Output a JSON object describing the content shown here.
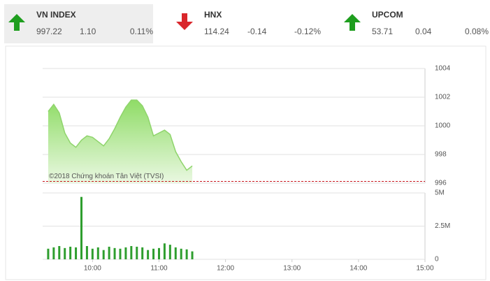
{
  "indices": [
    {
      "name": "VN INDEX",
      "value": "997.22",
      "change": "1.10",
      "percent": "0.11%",
      "direction": "up",
      "color": "#1e9e1e"
    },
    {
      "name": "HNX",
      "value": "114.24",
      "change": "-0.14",
      "percent": "-0.12%",
      "direction": "down",
      "color": "#d9262b"
    },
    {
      "name": "UPCOM",
      "value": "53.71",
      "change": "0.04",
      "percent": "0.08%",
      "direction": "up",
      "color": "#1e9e1e"
    }
  ],
  "chart_data": [
    {
      "type": "area",
      "annotation": "©2018 Chứng khoán Tân Việt (TVSI)",
      "x": [
        "09:20",
        "09:25",
        "09:30",
        "09:35",
        "09:40",
        "09:45",
        "09:50",
        "09:55",
        "10:00",
        "10:05",
        "10:10",
        "10:15",
        "10:20",
        "10:25",
        "10:30",
        "10:35",
        "10:40",
        "10:45",
        "10:50",
        "10:55",
        "11:00",
        "11:05",
        "11:10",
        "11:15",
        "11:20",
        "11:25",
        "11:30"
      ],
      "values": [
        1001.0,
        1001.5,
        1000.9,
        999.5,
        998.8,
        998.5,
        999.0,
        999.3,
        999.2,
        998.9,
        998.6,
        999.1,
        999.8,
        1000.6,
        1001.3,
        1001.8,
        1001.8,
        1001.4,
        1000.6,
        999.3,
        999.5,
        999.7,
        999.4,
        998.2,
        997.5,
        996.9,
        997.2
      ],
      "color": "#8fd46c",
      "xlim": [
        "09:15",
        "15:00"
      ],
      "ylim": [
        996,
        1004
      ],
      "yticks": [
        996,
        998,
        1000,
        1002,
        1004
      ],
      "grid": true,
      "reference": 996.12,
      "reference_color": "#c8161d"
    },
    {
      "type": "bar",
      "x": [
        "09:20",
        "09:25",
        "09:30",
        "09:35",
        "09:40",
        "09:45",
        "09:50",
        "09:55",
        "10:00",
        "10:05",
        "10:10",
        "10:15",
        "10:20",
        "10:25",
        "10:30",
        "10:35",
        "10:40",
        "10:45",
        "10:50",
        "10:55",
        "11:00",
        "11:05",
        "11:10",
        "11:15",
        "11:20",
        "11:25",
        "11:30"
      ],
      "values": [
        800000,
        900000,
        1000000,
        850000,
        950000,
        900000,
        4700000,
        1000000,
        800000,
        900000,
        700000,
        950000,
        850000,
        800000,
        900000,
        1000000,
        950000,
        900000,
        700000,
        800000,
        850000,
        1200000,
        1100000,
        900000,
        800000,
        750000,
        600000
      ],
      "color": "#2e9e2e",
      "xlim": [
        "09:15",
        "15:00"
      ],
      "ylim": [
        0,
        5000000
      ],
      "yticks": [
        0,
        {
          "value": 2500000,
          "label": "2.5M"
        },
        {
          "value": 5000000,
          "label": "5M"
        }
      ],
      "xticks": [
        "10:00",
        "11:00",
        "12:00",
        "13:00",
        "14:00",
        "15:00"
      ],
      "grid": true
    }
  ]
}
